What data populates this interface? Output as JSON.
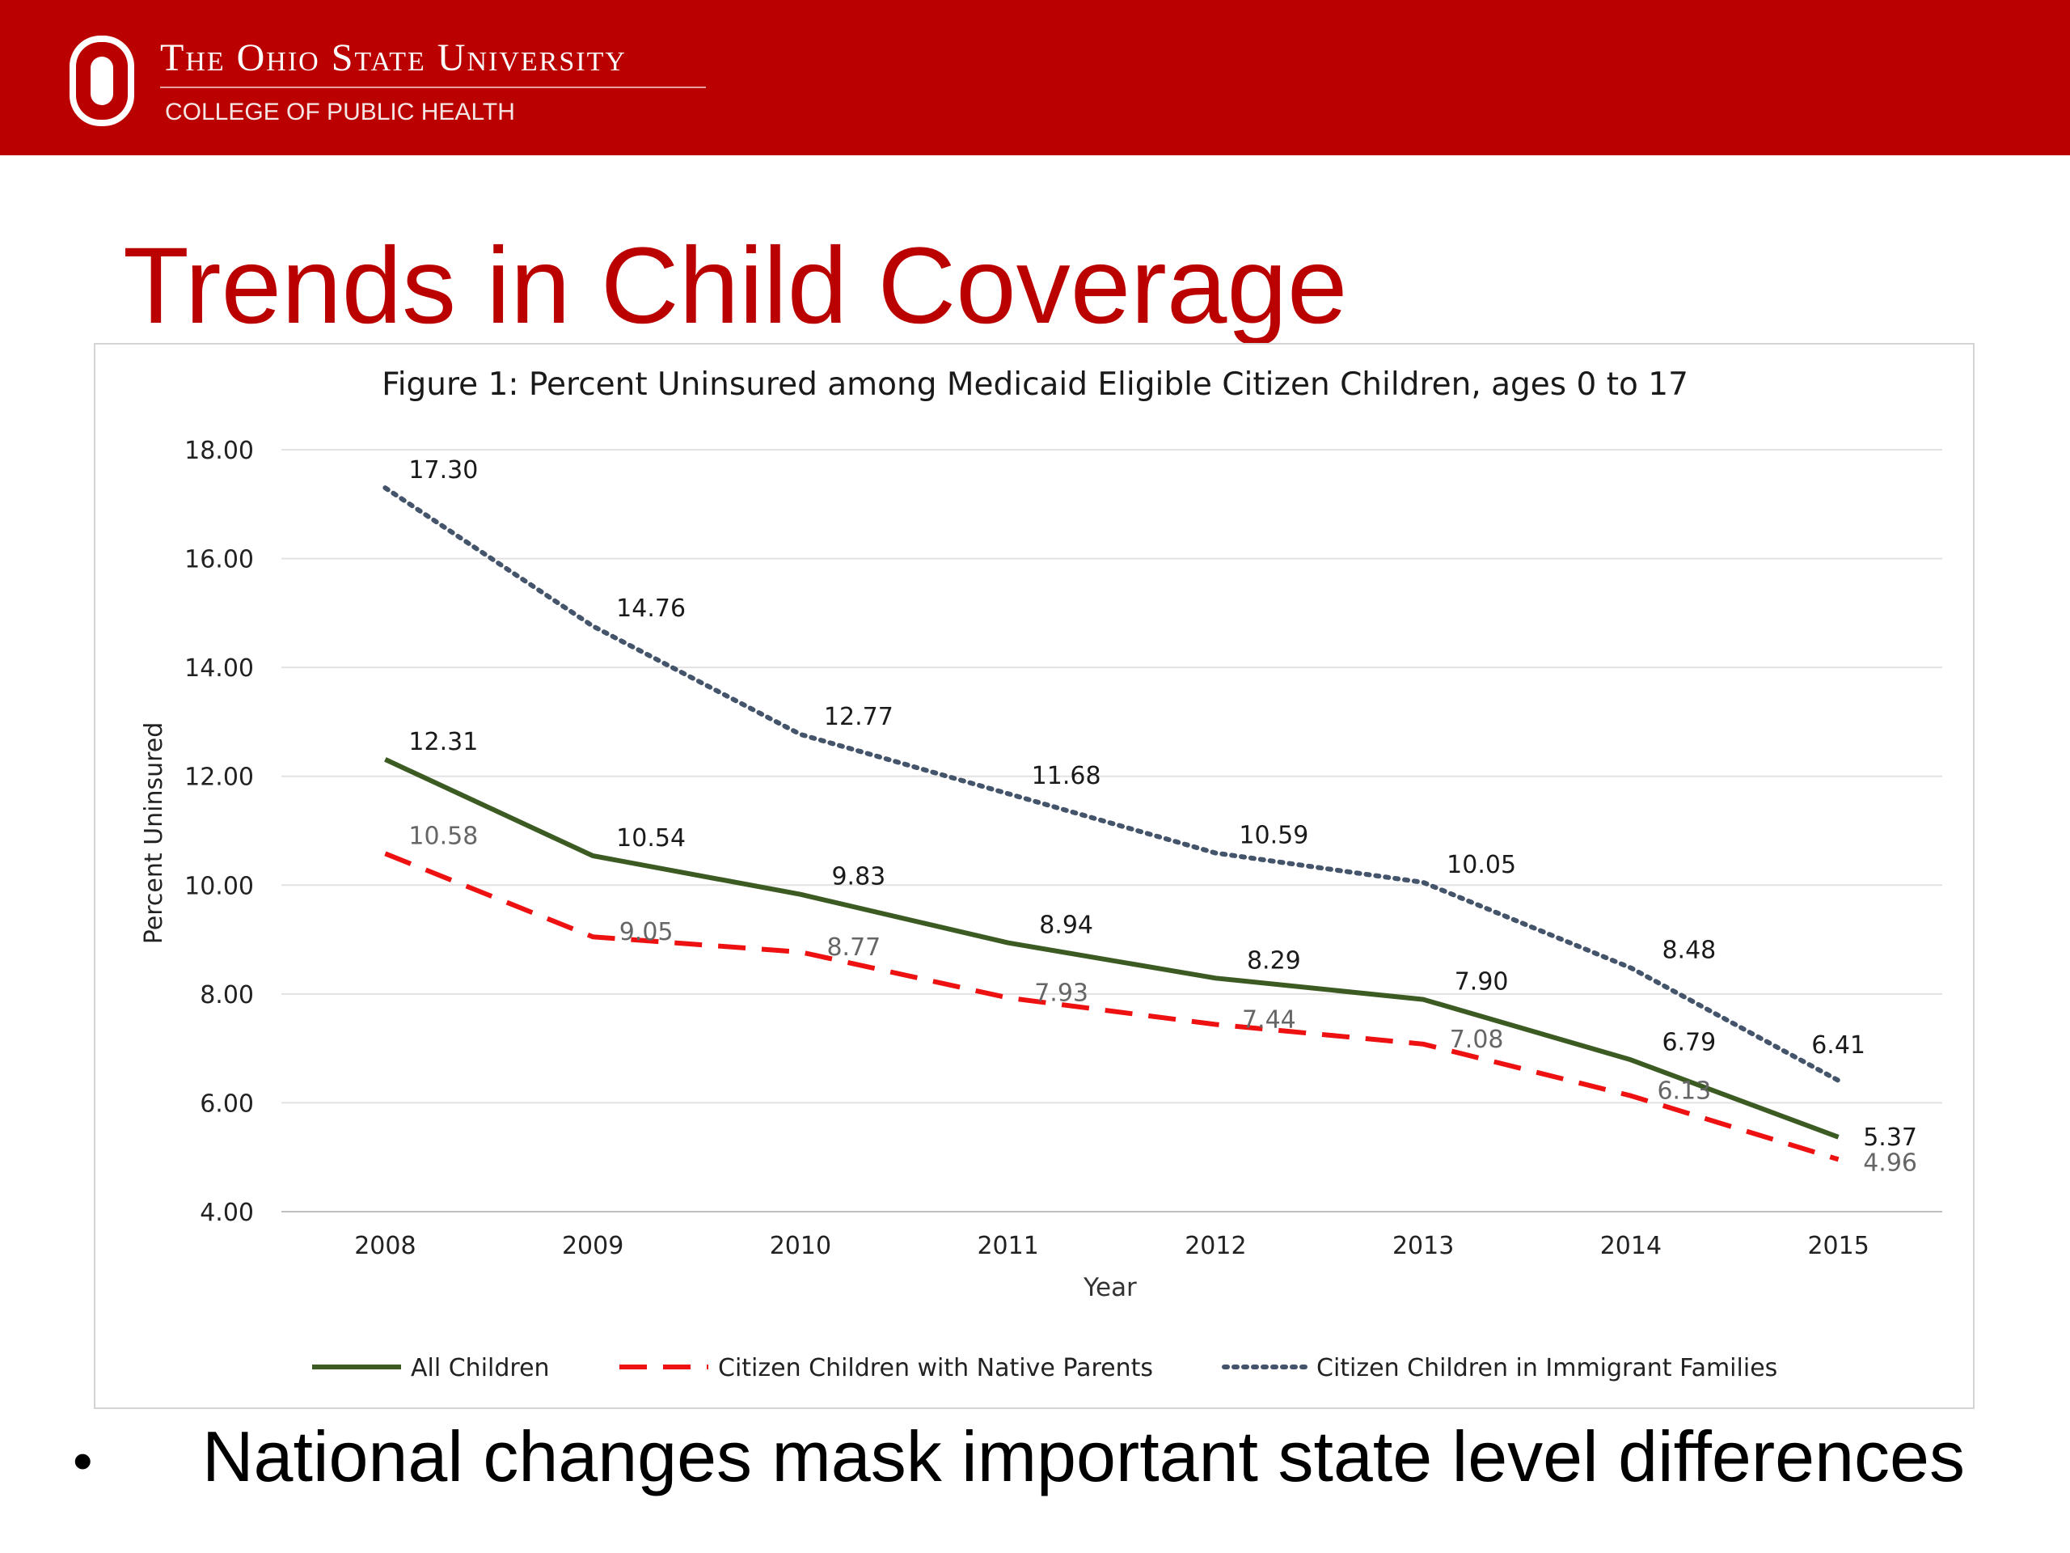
{
  "header": {
    "university": "The Ohio State University",
    "college": "COLLEGE OF PUBLIC HEALTH",
    "brand_color": "#bb0000"
  },
  "slide": {
    "title": "Trends in Child Coverage",
    "bullet_marker": "•",
    "bullet_text": "National changes mask important state level differences"
  },
  "chart_data": {
    "type": "line",
    "title": "Figure 1: Percent Uninsured among Medicaid Eligible Citizen Children, ages 0 to 17",
    "xlabel": "Year",
    "ylabel": "Percent Uninsured",
    "categories": [
      "2008",
      "2009",
      "2010",
      "2011",
      "2012",
      "2013",
      "2014",
      "2015"
    ],
    "ylim": [
      4,
      18
    ],
    "yticks": [
      "4.00",
      "6.00",
      "8.00",
      "10.00",
      "12.00",
      "14.00",
      "16.00",
      "18.00"
    ],
    "grid": true,
    "legend_position": "bottom",
    "series": [
      {
        "name": "All Children",
        "values": [
          12.31,
          10.54,
          9.83,
          8.94,
          8.29,
          7.9,
          6.79,
          5.37
        ],
        "labels": [
          "12.31",
          "10.54",
          "9.83",
          "8.94",
          "8.29",
          "7.90",
          "6.79",
          "5.37"
        ],
        "color": "#3b5b23",
        "style": "solid"
      },
      {
        "name": "Citizen Children with Native Parents",
        "values": [
          10.58,
          9.05,
          8.77,
          7.93,
          7.44,
          7.08,
          6.13,
          4.96
        ],
        "labels": [
          "10.58",
          "9.05",
          "8.77",
          "7.93",
          "7.44",
          "7.08",
          "6.13",
          "4.96"
        ],
        "color": "#ee1111",
        "style": "dashed"
      },
      {
        "name": "Citizen Children in Immigrant Families",
        "values": [
          17.3,
          14.76,
          12.77,
          11.68,
          10.59,
          10.05,
          8.48,
          6.41
        ],
        "labels": [
          "17.30",
          "14.76",
          "12.77",
          "11.68",
          "10.59",
          "10.05",
          "8.48",
          "6.41"
        ],
        "color": "#44546a",
        "style": "dotted"
      }
    ]
  }
}
